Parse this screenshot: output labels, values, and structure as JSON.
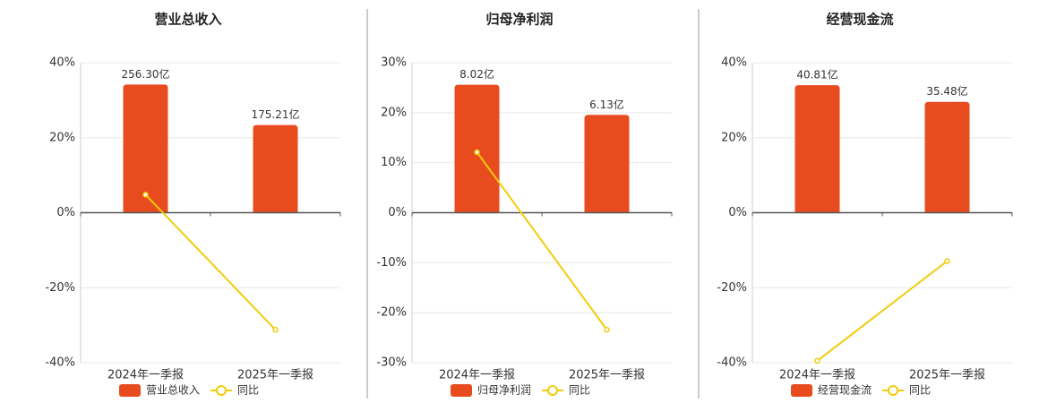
{
  "chart_data": [
    {
      "type": "bar",
      "title": "营业总收入",
      "categories": [
        "2024年一季报",
        "2025年一季报"
      ],
      "series": [
        {
          "name": "营业总收入",
          "type": "bar",
          "color": "#e84c1e",
          "axis": "y2",
          "values": [
            256.3,
            175.21
          ],
          "value_labels": [
            "256.30亿",
            "175.21亿"
          ]
        },
        {
          "name": "同比",
          "type": "line",
          "color": "#f2cc0c",
          "values": [
            4.8,
            -31.2
          ]
        }
      ],
      "ylim": [
        -40,
        40
      ],
      "yticks": [
        {
          "value": -40,
          "label": "-40%"
        },
        {
          "value": -20,
          "label": "-20%"
        },
        {
          "value": 0,
          "label": "0%"
        },
        {
          "value": 20,
          "label": "20%"
        },
        {
          "value": 40,
          "label": "40%"
        }
      ],
      "y2lim": [
        -300,
        300
      ],
      "grid": true
    },
    {
      "type": "bar",
      "title": "归母净利润",
      "categories": [
        "2024年一季报",
        "2025年一季报"
      ],
      "series": [
        {
          "name": "归母净利润",
          "type": "bar",
          "color": "#e84c1e",
          "axis": "y2",
          "values": [
            8.02,
            6.13
          ],
          "value_labels": [
            "8.02亿",
            "6.13亿"
          ]
        },
        {
          "name": "同比",
          "type": "line",
          "color": "#f2cc0c",
          "values": [
            12.1,
            -23.4
          ]
        }
      ],
      "ylim": [
        -30,
        30
      ],
      "yticks": [
        {
          "value": -30,
          "label": "-30%"
        },
        {
          "value": -20,
          "label": "-20%"
        },
        {
          "value": -10,
          "label": "-10%"
        },
        {
          "value": 0,
          "label": "0%"
        },
        {
          "value": 10,
          "label": "10%"
        },
        {
          "value": 20,
          "label": "20%"
        },
        {
          "value": 30,
          "label": "30%"
        }
      ],
      "y2lim": [
        -9.4,
        9.4
      ],
      "grid": true
    },
    {
      "type": "bar",
      "title": "经营现金流",
      "categories": [
        "2024年一季报",
        "2025年一季报"
      ],
      "series": [
        {
          "name": "经营现金流",
          "type": "bar",
          "color": "#e84c1e",
          "axis": "y2",
          "values": [
            40.81,
            35.48
          ],
          "value_labels": [
            "40.81亿",
            "35.48亿"
          ]
        },
        {
          "name": "同比",
          "type": "line",
          "color": "#f2cc0c",
          "values": [
            -39.5,
            -12.9
          ]
        }
      ],
      "ylim": [
        -40,
        40
      ],
      "yticks": [
        {
          "value": -40,
          "label": "-40%"
        },
        {
          "value": -20,
          "label": "-20%"
        },
        {
          "value": 0,
          "label": "0%"
        },
        {
          "value": 20,
          "label": "20%"
        },
        {
          "value": 40,
          "label": "40%"
        }
      ],
      "y2lim": [
        -48,
        48
      ],
      "grid": true
    }
  ]
}
